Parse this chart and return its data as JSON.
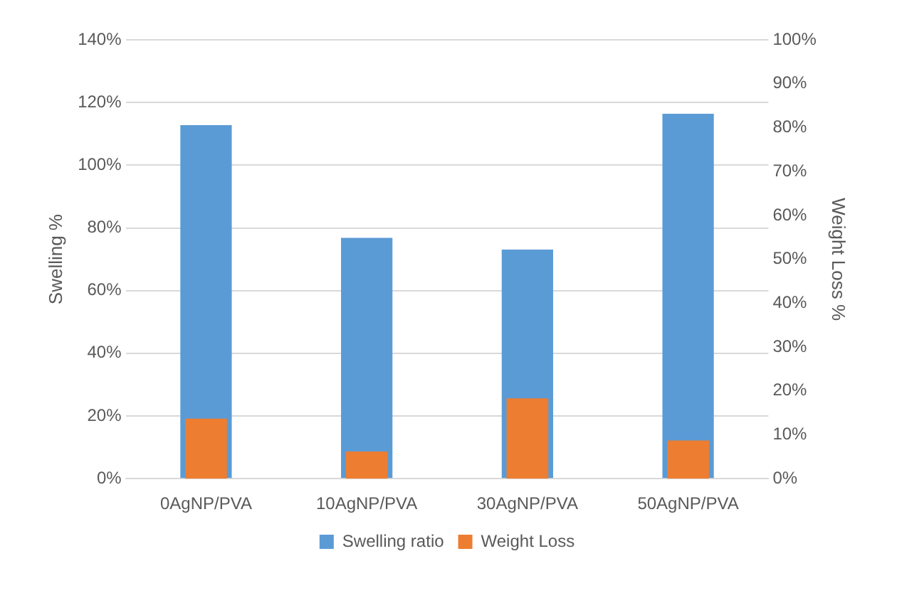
{
  "chart_data": {
    "type": "bar",
    "categories": [
      "0AgNP/PVA",
      "10AgNP/PVA",
      "30AgNP/PVA",
      "50AgNP/PVA"
    ],
    "ylabel": "Swelling %",
    "y2label": "Weight Loss %",
    "series": [
      {
        "name": "Swelling ratio",
        "color": "#5b9bd5",
        "values": [
          112.8,
          76.8,
          73.1,
          116.4
        ]
      },
      {
        "name": "Weight Loss",
        "color": "#ed7d31",
        "axis": "y2",
        "values": [
          13.7,
          6.2,
          18.3,
          8.7
        ]
      }
    ],
    "ylim": [
      0,
      140
    ],
    "yticks": [
      {
        "value": 0,
        "label": "0%"
      },
      {
        "value": 20,
        "label": "20%"
      },
      {
        "value": 40,
        "label": "40%"
      },
      {
        "value": 60,
        "label": "60%"
      },
      {
        "value": 80,
        "label": "80%"
      },
      {
        "value": 100,
        "label": "100%"
      },
      {
        "value": 120,
        "label": "120%"
      },
      {
        "value": 140,
        "label": "140%"
      }
    ],
    "y2lim": [
      0,
      100
    ],
    "y2ticks": [
      {
        "value": 0,
        "label": "0%"
      },
      {
        "value": 10,
        "label": "10%"
      },
      {
        "value": 20,
        "label": "20%"
      },
      {
        "value": 30,
        "label": "30%"
      },
      {
        "value": 40,
        "label": "40%"
      },
      {
        "value": 50,
        "label": "50%"
      },
      {
        "value": 60,
        "label": "60%"
      },
      {
        "value": 70,
        "label": "70%"
      },
      {
        "value": 80,
        "label": "80%"
      },
      {
        "value": 90,
        "label": "90%"
      },
      {
        "value": 100,
        "label": "100%"
      }
    ],
    "grid": "y",
    "legend": "bottom"
  }
}
